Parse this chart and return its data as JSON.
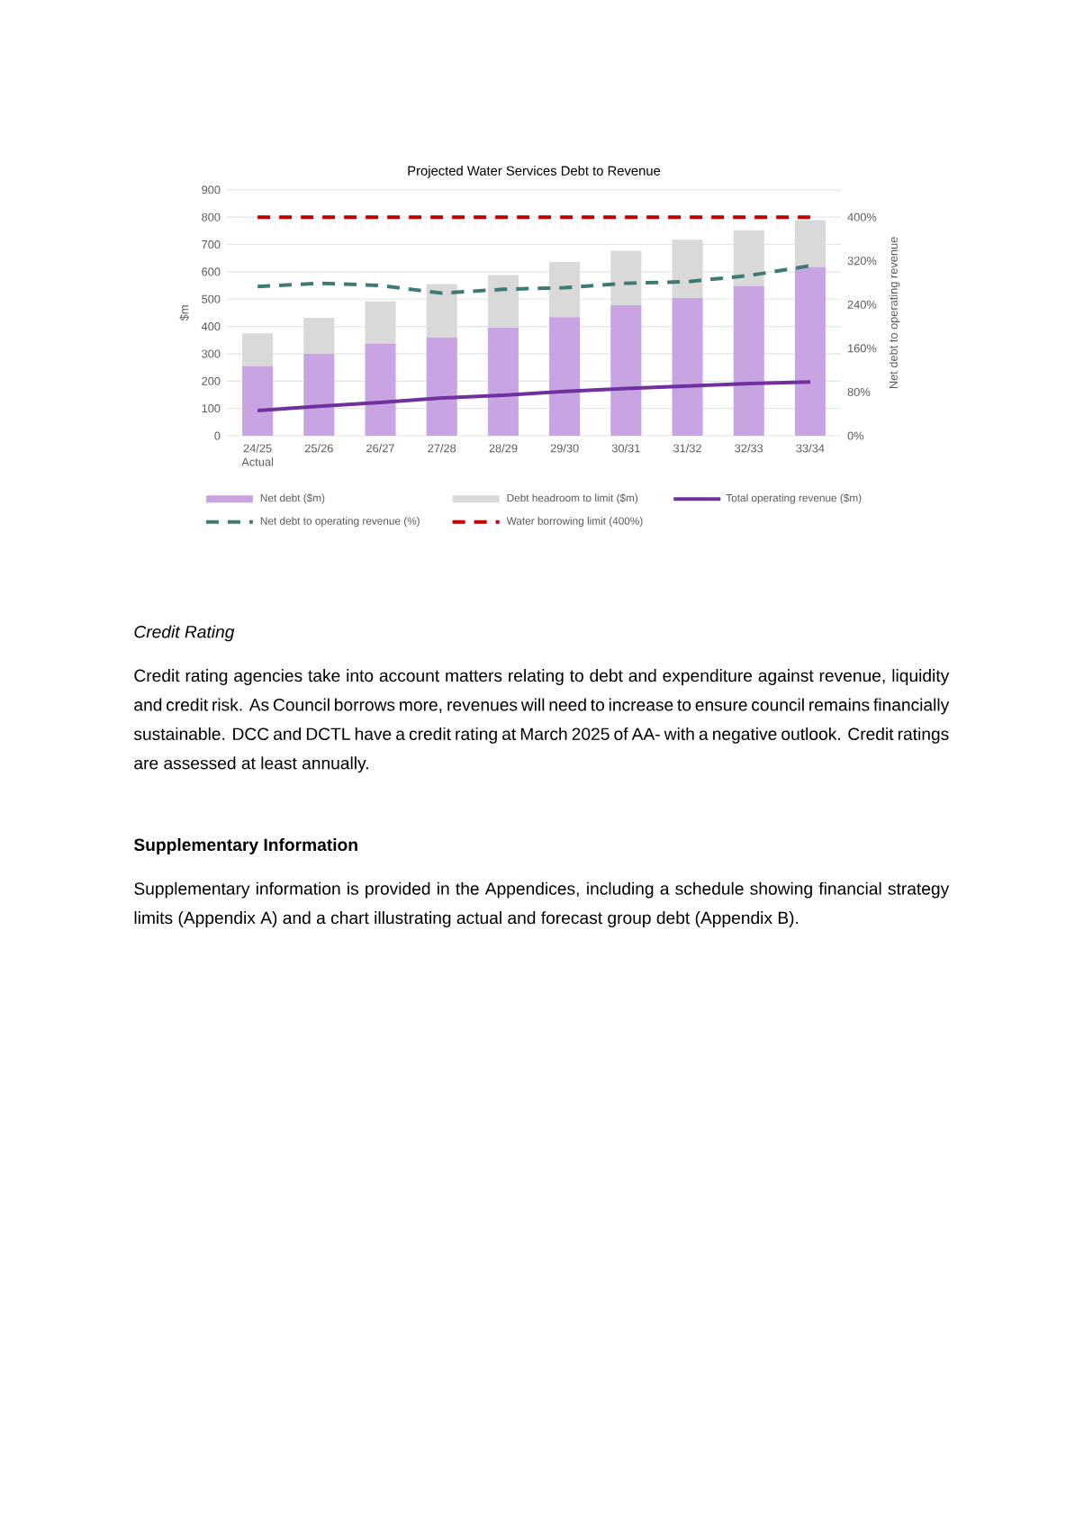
{
  "chart_data": {
    "type": "bar",
    "title": "Projected Water Services Debt to Revenue",
    "categories": [
      "24/25 Actual",
      "25/26",
      "26/27",
      "27/28",
      "28/29",
      "29/30",
      "30/31",
      "31/32",
      "32/33",
      "33/34"
    ],
    "stacked": true,
    "series": [
      {
        "name": "Net debt ($m)",
        "color": "#c8a5e2",
        "values": [
          255,
          300,
          338,
          360,
          395,
          434,
          478,
          504,
          548,
          618
        ]
      },
      {
        "name": "Debt headroom to limit ($m)",
        "color": "#d9d9d9",
        "values": [
          120,
          132,
          154,
          195,
          193,
          202,
          199,
          213,
          204,
          171
        ]
      },
      {
        "name": "Total operating revenue ($m)",
        "type": "line",
        "color": "#7030a0",
        "line_style": "solid",
        "values": [
          92,
          108,
          122,
          138,
          148,
          162,
          173,
          182,
          191,
          197
        ]
      },
      {
        "name": "Net debt to operating revenue (%)",
        "type": "line",
        "axis": "y2",
        "color": "#3e7a74",
        "line_style": "dashed",
        "values": [
          273,
          279,
          275,
          261,
          268,
          271,
          279,
          282,
          293,
          311
        ]
      },
      {
        "name": "Water borrowing limit (400%)",
        "type": "line",
        "axis": "y2",
        "color": "#c00000",
        "line_style": "dashed",
        "values": [
          400,
          400,
          400,
          400,
          400,
          400,
          400,
          400,
          400,
          400
        ]
      }
    ],
    "ylabel": "$m",
    "y2label": "Net debt to operating revenue",
    "ylim": [
      0,
      900
    ],
    "yticks": [
      0,
      100,
      200,
      300,
      400,
      500,
      600,
      700,
      800,
      900
    ],
    "y2lim": [
      0,
      450
    ],
    "y2ticks": [
      {
        "value": 0,
        "label": "0%"
      },
      {
        "value": 80,
        "label": "80%"
      },
      {
        "value": 160,
        "label": "160%"
      },
      {
        "value": 240,
        "label": "240%"
      },
      {
        "value": 320,
        "label": "320%"
      },
      {
        "value": 400,
        "label": "400%"
      }
    ],
    "grid": "y",
    "legend": "bottom",
    "annotations": [
      "Credit Rating",
      "Credit rating agencies take into account matters relating to debt and expenditure against revenue, liquidity and credit risk. As Council borrows more, revenues will need to increase to ensure council remains financially sustainable. DCC and DCTL have a credit rating at March 2025 of AA- with a negative outlook. Credit ratings are assessed at least annually.",
      "Supplementary Information",
      "Supplementary information is provided in the Appendices, including a schedule showing financial strategy limits (Appendix A) and a chart illustrating actual and forecast group debt (Appendix B)."
    ]
  }
}
